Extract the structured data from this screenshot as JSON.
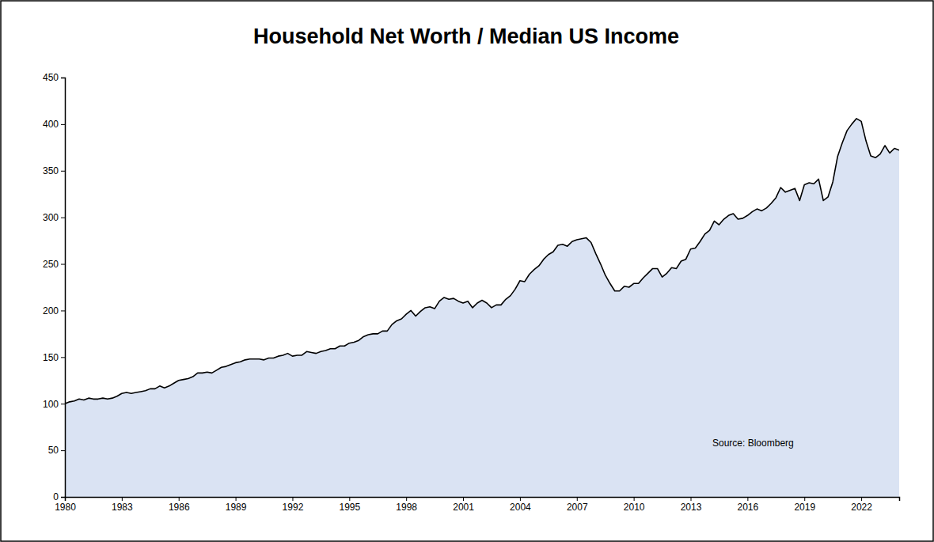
{
  "chart_data": {
    "type": "area",
    "title": "Household Net Worth / Median US Income",
    "annotations": [
      "Source: Bloomberg"
    ],
    "color": "#dae3f3",
    "x": [
      1980,
      1980.25,
      1980.5,
      1980.75,
      1981,
      1981.25,
      1981.5,
      1981.75,
      1982,
      1982.25,
      1982.5,
      1982.75,
      1983,
      1983.25,
      1983.5,
      1983.75,
      1984,
      1984.25,
      1984.5,
      1984.75,
      1985,
      1985.25,
      1985.5,
      1985.75,
      1986,
      1986.25,
      1986.5,
      1986.75,
      1987,
      1987.25,
      1987.5,
      1987.75,
      1988,
      1988.25,
      1988.5,
      1988.75,
      1989,
      1989.25,
      1989.5,
      1989.75,
      1990,
      1990.25,
      1990.5,
      1990.75,
      1991,
      1991.25,
      1991.5,
      1991.75,
      1992,
      1992.25,
      1992.5,
      1992.75,
      1993,
      1993.25,
      1993.5,
      1993.75,
      1994,
      1994.25,
      1994.5,
      1994.75,
      1995,
      1995.25,
      1995.5,
      1995.75,
      1996,
      1996.25,
      1996.5,
      1996.75,
      1997,
      1997.25,
      1997.5,
      1997.75,
      1998,
      1998.25,
      1998.5,
      1998.75,
      1999,
      1999.25,
      1999.5,
      1999.75,
      2000,
      2000.25,
      2000.5,
      2000.75,
      2001,
      2001.25,
      2001.5,
      2001.75,
      2002,
      2002.25,
      2002.5,
      2002.75,
      2003,
      2003.25,
      2003.5,
      2003.75,
      2004,
      2004.25,
      2004.5,
      2004.75,
      2005,
      2005.25,
      2005.5,
      2005.75,
      2006,
      2006.25,
      2006.5,
      2006.75,
      2007,
      2007.25,
      2007.5,
      2007.75,
      2008,
      2008.25,
      2008.5,
      2008.75,
      2009,
      2009.25,
      2009.5,
      2009.75,
      2010,
      2010.25,
      2010.5,
      2010.75,
      2011,
      2011.25,
      2011.5,
      2011.75,
      2012,
      2012.25,
      2012.5,
      2012.75,
      2013,
      2013.25,
      2013.5,
      2013.75,
      2014,
      2014.25,
      2014.5,
      2014.75,
      2015,
      2015.25,
      2015.5,
      2015.75,
      2016,
      2016.25,
      2016.5,
      2016.75,
      2017,
      2017.25,
      2017.5,
      2017.75,
      2018,
      2018.25,
      2018.5,
      2018.75,
      2019,
      2019.25,
      2019.5,
      2019.75,
      2020,
      2020.25,
      2020.5,
      2020.75,
      2021,
      2021.25,
      2021.5,
      2021.75,
      2022,
      2022.25,
      2022.5,
      2022.75,
      2023,
      2023.25,
      2023.5,
      2023.75,
      2024
    ],
    "values": [
      100,
      102,
      103,
      105,
      104,
      106,
      105,
      105,
      106,
      105,
      106,
      108,
      111,
      112,
      111,
      112,
      113,
      114,
      116,
      116,
      119,
      117,
      119,
      122,
      125,
      126,
      127,
      129,
      133,
      133,
      134,
      133,
      136,
      139,
      140,
      142,
      144,
      145,
      147,
      148,
      148,
      148,
      147,
      149,
      149,
      151,
      152,
      154,
      151,
      152,
      152,
      156,
      155,
      154,
      156,
      157,
      159,
      159,
      162,
      162,
      165,
      166,
      168,
      172,
      174,
      175,
      175,
      178,
      178,
      185,
      189,
      191,
      196,
      200,
      194,
      199,
      203,
      204,
      202,
      210,
      214,
      212,
      213,
      210,
      208,
      210,
      203,
      208,
      211,
      208,
      203,
      206,
      206,
      212,
      216,
      223,
      232,
      231,
      239,
      244,
      248,
      255,
      260,
      263,
      270,
      271,
      269,
      274,
      276,
      277,
      278,
      273,
      261,
      250,
      238,
      229,
      221,
      221,
      226,
      225,
      229,
      229,
      235,
      240,
      245,
      245,
      236,
      240,
      246,
      245,
      253,
      255,
      266,
      267,
      274,
      282,
      286,
      296,
      292,
      298,
      302,
      304,
      298,
      299,
      302,
      306,
      309,
      307,
      310,
      315,
      321,
      332,
      327,
      329,
      331,
      318,
      335,
      337,
      336,
      341,
      318,
      322,
      338,
      365,
      380,
      393,
      400,
      406,
      403,
      382,
      366,
      364,
      368,
      377,
      369,
      374,
      372
    ],
    "xlim": [
      1980,
      2024
    ],
    "xticks": [
      1980,
      1983,
      1986,
      1989,
      1992,
      1995,
      1998,
      2001,
      2004,
      2007,
      2010,
      2013,
      2016,
      2019,
      2022
    ],
    "ylim": [
      0,
      450
    ],
    "yticks": [
      0,
      50,
      100,
      150,
      200,
      250,
      300,
      350,
      400,
      450
    ],
    "grid": false
  }
}
